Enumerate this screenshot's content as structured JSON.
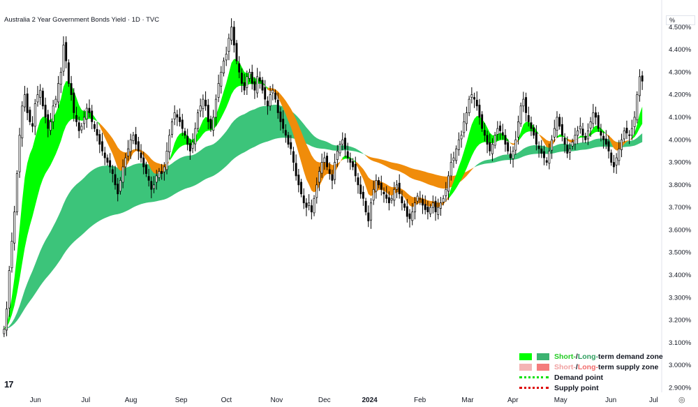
{
  "title": "Australia 2 Year Government Bonds Yield · 1D · TVC",
  "unit": "%",
  "chart_data": {
    "type": "candlestick",
    "ylim": [
      2.88,
      4.62
    ],
    "xlim": [
      0,
      280
    ],
    "y_ticks": [
      "4.500%",
      "4.400%",
      "4.300%",
      "4.200%",
      "4.100%",
      "4.000%",
      "3.900%",
      "3.800%",
      "3.700%",
      "3.600%",
      "3.500%",
      "3.400%",
      "3.300%",
      "3.200%",
      "3.100%",
      "3.000%",
      "2.900%"
    ],
    "x_ticks": [
      {
        "label": "Jun",
        "x": 13
      },
      {
        "label": "Jul",
        "x": 33
      },
      {
        "label": "Aug",
        "x": 51
      },
      {
        "label": "Sep",
        "x": 71
      },
      {
        "label": "Oct",
        "x": 89
      },
      {
        "label": "Nov",
        "x": 109
      },
      {
        "label": "Dec",
        "x": 128
      },
      {
        "label": "2024",
        "x": 146,
        "bold": true
      },
      {
        "label": "Feb",
        "x": 166
      },
      {
        "label": "Mar",
        "x": 185
      },
      {
        "label": "Apr",
        "x": 203
      },
      {
        "label": "May",
        "x": 222
      },
      {
        "label": "Jun",
        "x": 242
      },
      {
        "label": "Jul",
        "x": 259
      }
    ],
    "closes": [
      3.16,
      3.25,
      3.42,
      3.55,
      3.68,
      3.85,
      4.02,
      4.15,
      4.2,
      4.12,
      4.08,
      4.06,
      4.16,
      4.2,
      4.22,
      4.15,
      4.1,
      4.05,
      4.08,
      4.15,
      4.18,
      4.25,
      4.3,
      4.42,
      4.35,
      4.25,
      4.2,
      4.12,
      4.08,
      4.04,
      4.06,
      4.1,
      4.14,
      4.12,
      4.08,
      4.05,
      4.02,
      3.98,
      3.95,
      3.92,
      3.9,
      3.88,
      3.85,
      3.8,
      3.76,
      3.82,
      3.88,
      3.92,
      3.96,
      4.0,
      4.02,
      3.98,
      3.95,
      3.92,
      3.88,
      3.85,
      3.82,
      3.78,
      3.8,
      3.84,
      3.86,
      3.85,
      3.88,
      3.95,
      4.02,
      4.08,
      4.12,
      4.1,
      4.08,
      4.05,
      4.02,
      3.98,
      3.95,
      3.99,
      4.05,
      4.12,
      4.15,
      4.18,
      4.15,
      4.08,
      4.05,
      4.1,
      4.18,
      4.25,
      4.3,
      4.35,
      4.38,
      4.45,
      4.5,
      4.42,
      4.35,
      4.3,
      4.25,
      4.22,
      4.28,
      4.3,
      4.25,
      4.22,
      4.28,
      4.26,
      4.22,
      4.18,
      4.15,
      4.2,
      4.22,
      4.18,
      4.12,
      4.08,
      4.05,
      4.02,
      3.98,
      3.96,
      3.9,
      3.84,
      3.8,
      3.76,
      3.72,
      3.7,
      3.72,
      3.68,
      3.74,
      3.8,
      3.86,
      3.9,
      3.92,
      3.88,
      3.85,
      3.82,
      3.9,
      3.95,
      3.98,
      4.0,
      3.96,
      3.92,
      3.9,
      3.88,
      3.84,
      3.8,
      3.76,
      3.74,
      3.68,
      3.64,
      3.72,
      3.78,
      3.82,
      3.8,
      3.78,
      3.76,
      3.74,
      3.72,
      3.74,
      3.78,
      3.8,
      3.76,
      3.72,
      3.7,
      3.66,
      3.65,
      3.68,
      3.72,
      3.75,
      3.74,
      3.71,
      3.69,
      3.68,
      3.7,
      3.72,
      3.68,
      3.7,
      3.72,
      3.74,
      3.78,
      3.84,
      3.9,
      3.92,
      3.96,
      4.0,
      4.02,
      4.08,
      4.12,
      4.18,
      4.2,
      4.18,
      4.15,
      4.1,
      4.05,
      4.02,
      3.98,
      3.95,
      3.98,
      4.02,
      4.05,
      4.04,
      4.02,
      3.98,
      3.95,
      3.92,
      3.95,
      4.0,
      4.08,
      4.15,
      4.18,
      4.12,
      4.08,
      4.05,
      4.02,
      3.98,
      3.96,
      3.94,
      3.92,
      3.9,
      3.95,
      4.0,
      4.05,
      4.1,
      4.06,
      4.02,
      3.98,
      3.94,
      3.96,
      3.99,
      4.02,
      4.04,
      4.06,
      4.02,
      4.0,
      4.04,
      4.08,
      4.12,
      4.1,
      4.05,
      4.02,
      4.0,
      3.98,
      3.95,
      3.9,
      3.88,
      3.92,
      3.96,
      4.0,
      4.04,
      4.03,
      4.02,
      4.05,
      4.1,
      4.2,
      4.28,
      4.26
    ]
  },
  "legend": {
    "row1": {
      "a": "Short-",
      "sep": " / ",
      "b": "Long-",
      "rest": "term demand zone",
      "color_short": "#00ff00",
      "color_long": "#3cb371"
    },
    "row2": {
      "a": "Short-",
      "sep": " / ",
      "b": "Long-",
      "rest": "term supply zone",
      "color_short": "#f4b4b4",
      "color_long": "#f47c7c"
    },
    "row3": {
      "label": "Demand point",
      "color": "#00e000"
    },
    "row4": {
      "label": "Supply point",
      "color": "#dd0000"
    }
  },
  "logo_text": "17"
}
